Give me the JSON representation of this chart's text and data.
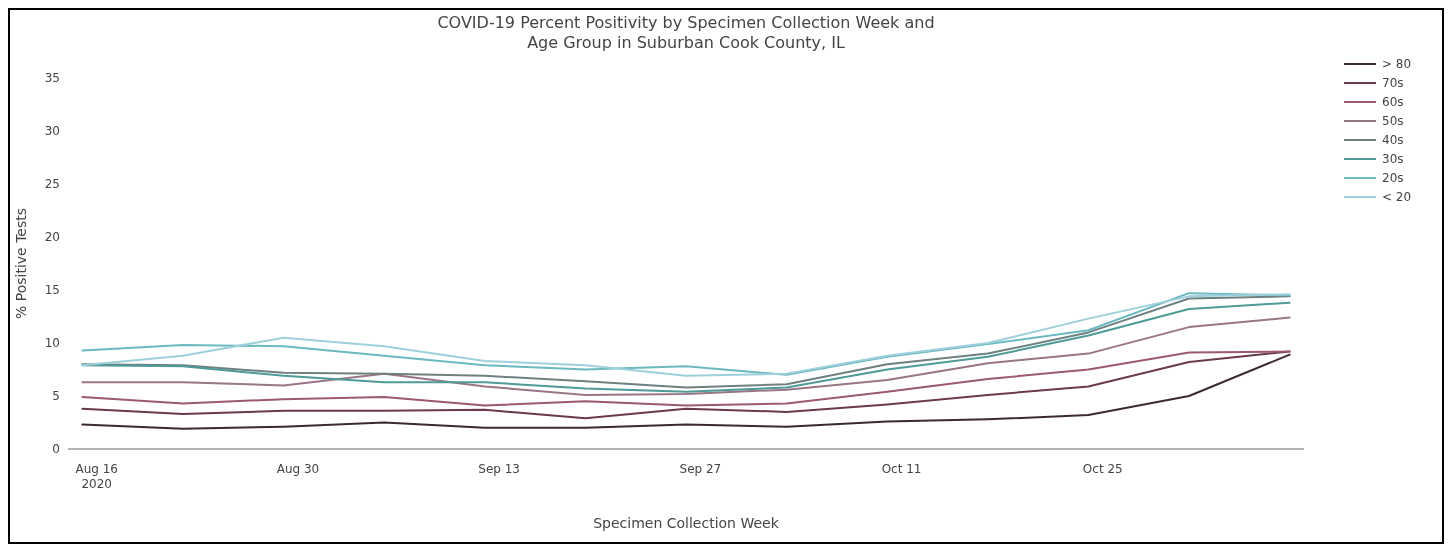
{
  "chart_data": {
    "type": "line",
    "title": "COVID-19 Percent Positivity by Specimen Collection Week and\nAge Group in Suburban Cook County, IL",
    "xlabel": "Specimen Collection Week",
    "ylabel": "% Positive Tests",
    "x": [
      "2020-08-15",
      "2020-08-22",
      "2020-08-29",
      "2020-09-05",
      "2020-09-12",
      "2020-09-19",
      "2020-09-26",
      "2020-10-03",
      "2020-10-10",
      "2020-10-17",
      "2020-10-24",
      "2020-10-31",
      "2020-11-07"
    ],
    "series": [
      {
        "name": "> 80",
        "color": "#3b2a33",
        "values": [
          2.3,
          1.9,
          2.1,
          2.5,
          2.0,
          2.0,
          2.3,
          2.1,
          2.6,
          2.8,
          3.2,
          5.0,
          8.9
        ]
      },
      {
        "name": "70s",
        "color": "#6b3a4a",
        "values": [
          3.8,
          3.3,
          3.6,
          3.6,
          3.7,
          2.9,
          3.8,
          3.5,
          4.2,
          5.1,
          5.9,
          8.2,
          9.2
        ]
      },
      {
        "name": "60s",
        "color": "#9c5a6a",
        "values": [
          4.9,
          4.3,
          4.7,
          4.9,
          4.1,
          4.5,
          4.1,
          4.3,
          5.4,
          6.6,
          7.5,
          9.1,
          9.2
        ]
      },
      {
        "name": "50s",
        "color": "#9a7585",
        "values": [
          6.3,
          6.3,
          6.0,
          7.1,
          5.9,
          5.1,
          5.2,
          5.6,
          6.5,
          8.1,
          9.0,
          11.5,
          12.4
        ]
      },
      {
        "name": "40s",
        "color": "#6f8080",
        "values": [
          8.0,
          7.9,
          7.2,
          7.1,
          6.9,
          6.4,
          5.8,
          6.1,
          8.0,
          9.0,
          11.0,
          14.2,
          14.4
        ]
      },
      {
        "name": "30s",
        "color": "#4e9a98",
        "values": [
          7.9,
          7.8,
          6.9,
          6.3,
          6.3,
          5.7,
          5.4,
          5.8,
          7.5,
          8.7,
          10.7,
          13.2,
          13.8
        ]
      },
      {
        "name": "20s",
        "color": "#6bb8c0",
        "values": [
          9.3,
          9.8,
          9.7,
          8.8,
          7.9,
          7.5,
          7.8,
          7.0,
          8.7,
          9.9,
          11.2,
          14.7,
          14.5
        ]
      },
      {
        "name": "< 20",
        "color": "#9dd0da",
        "values": [
          7.9,
          8.8,
          10.5,
          9.7,
          8.3,
          7.9,
          6.9,
          7.1,
          8.8,
          10.0,
          12.3,
          14.4,
          14.6
        ]
      }
    ],
    "xlim": [
      "2020-08-14",
      "2020-11-08"
    ],
    "xticks": [
      {
        "value": "2020-08-16",
        "label": "Aug 16\n2020"
      },
      {
        "value": "2020-08-30",
        "label": "Aug 30"
      },
      {
        "value": "2020-09-13",
        "label": "Sep 13"
      },
      {
        "value": "2020-09-27",
        "label": "Sep 27"
      },
      {
        "value": "2020-10-11",
        "label": "Oct 11"
      },
      {
        "value": "2020-10-25",
        "label": "Oct 25"
      }
    ],
    "ylim": [
      0,
      35
    ],
    "yticks": [
      0,
      5,
      10,
      15,
      20,
      25,
      30,
      35
    ],
    "legend": "top right",
    "marker": "none",
    "line_style": "solid"
  }
}
